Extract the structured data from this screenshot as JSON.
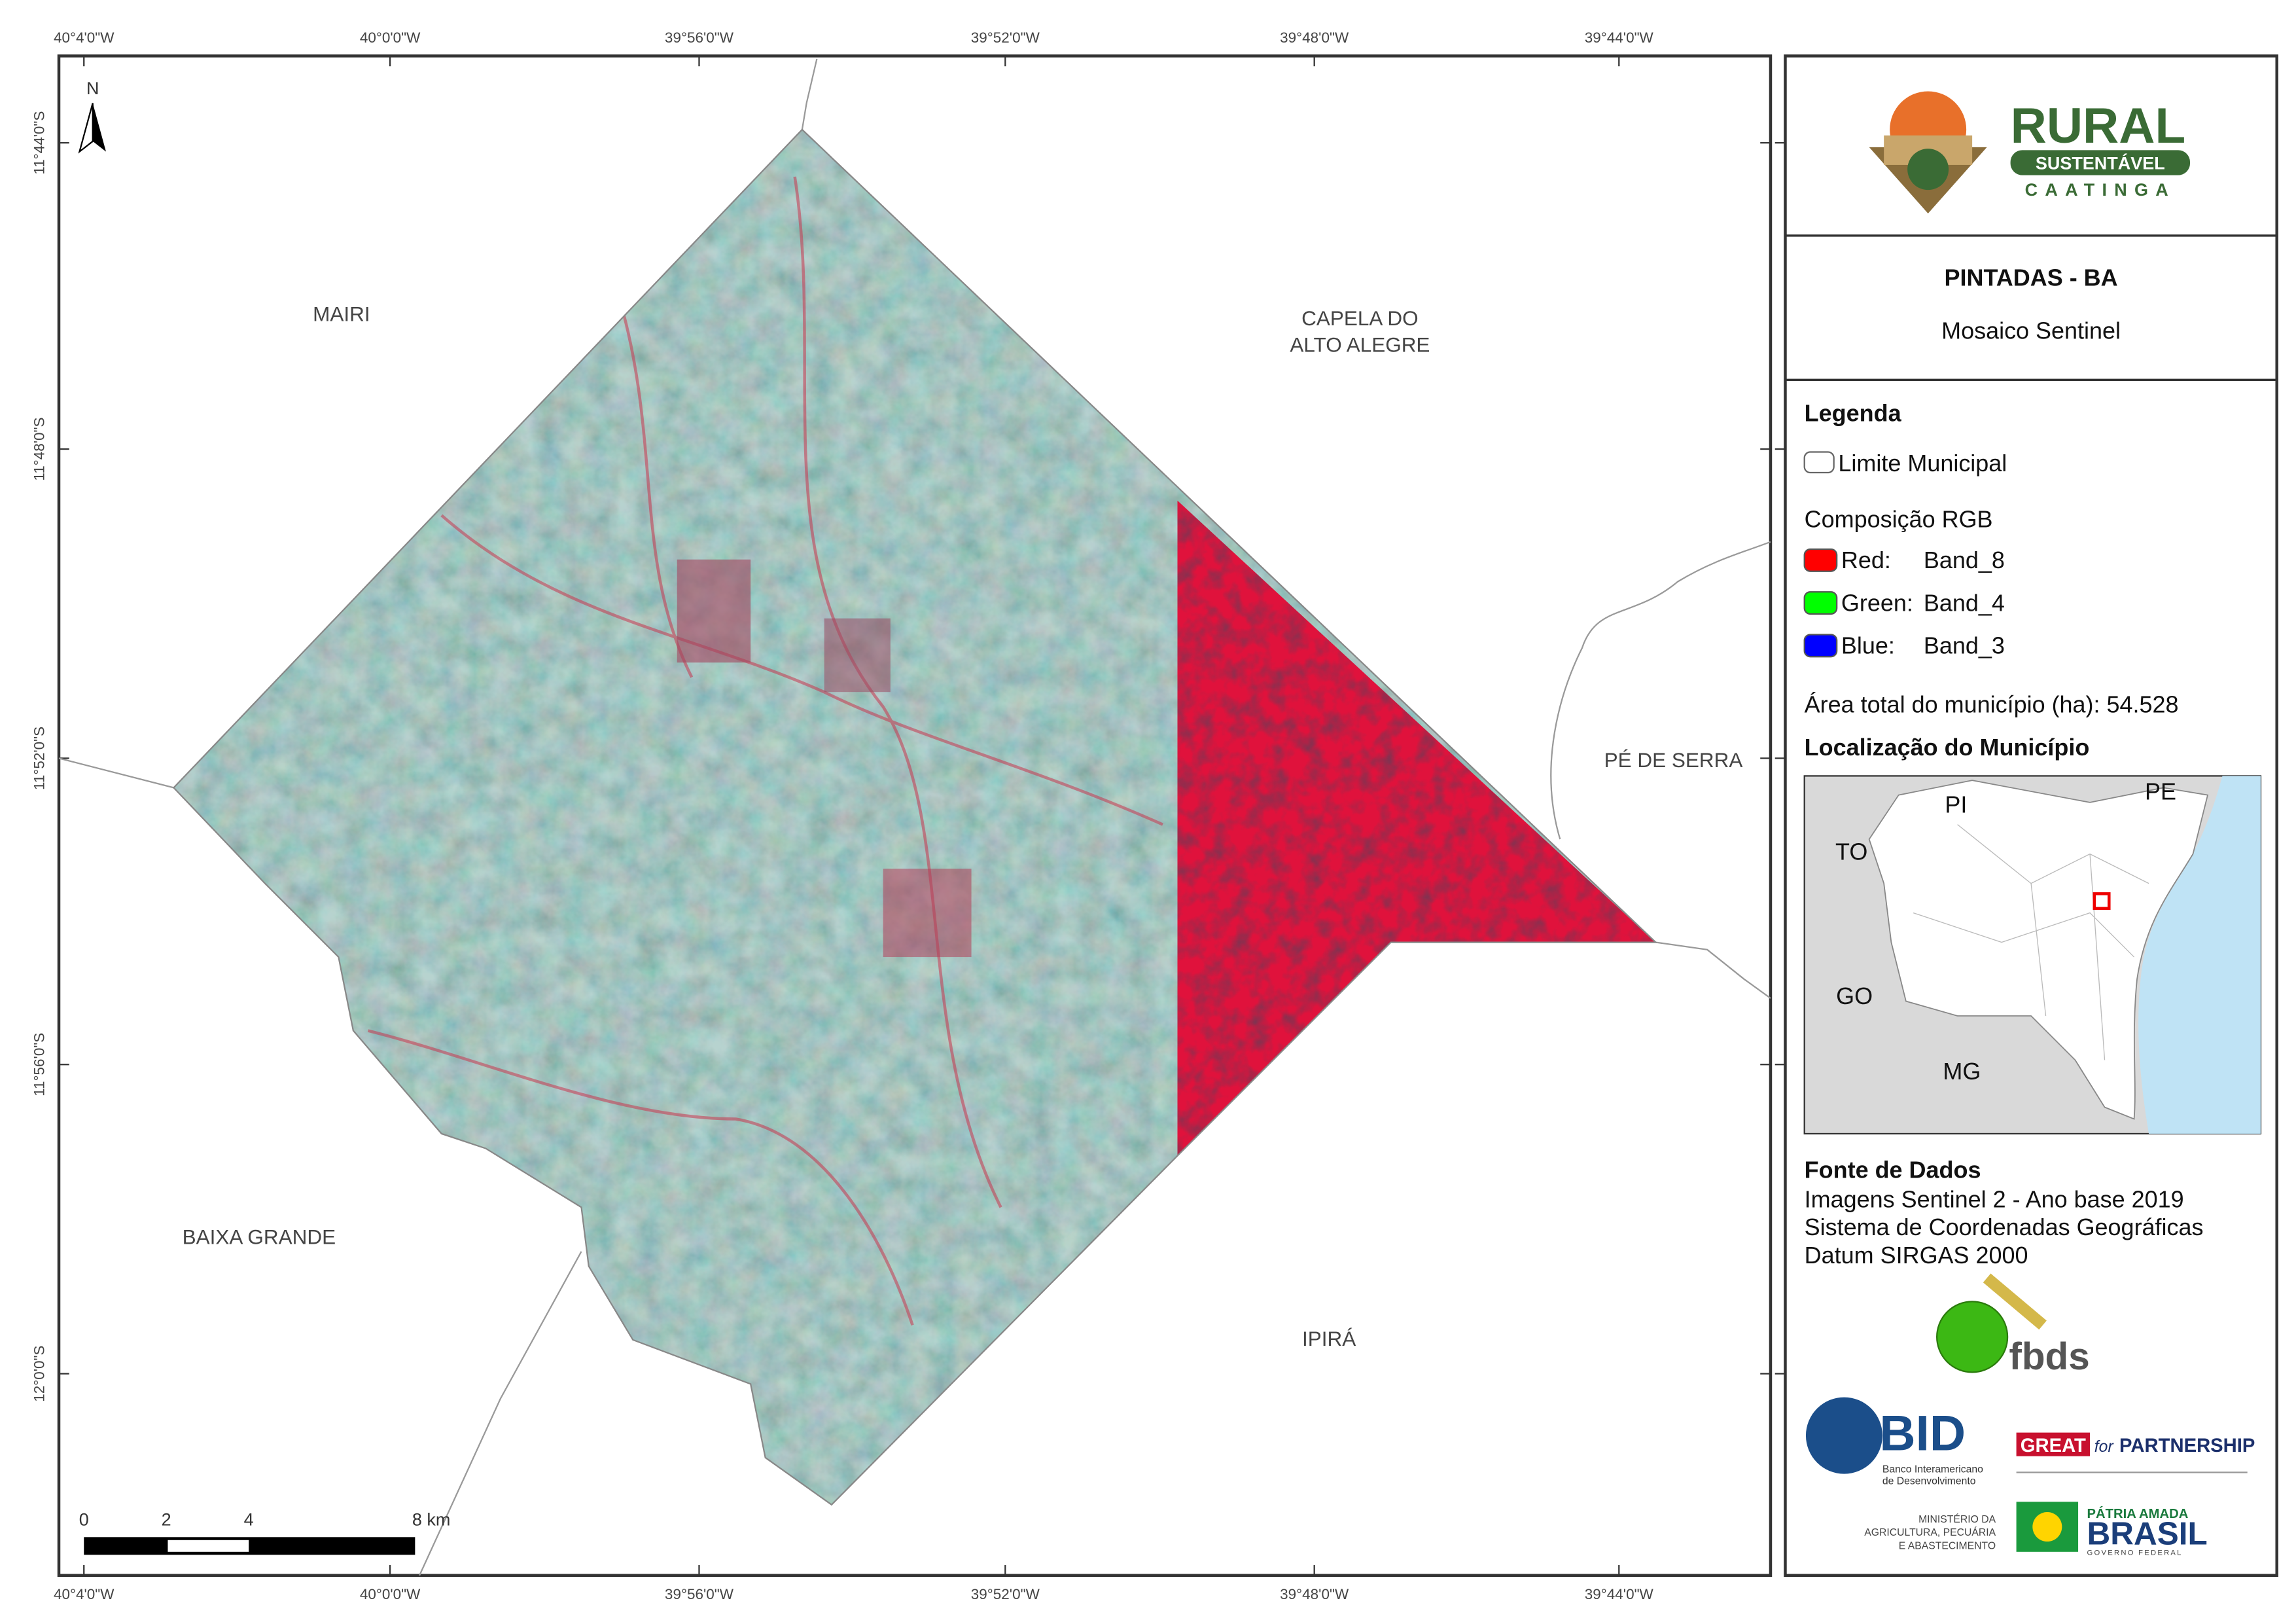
{
  "map": {
    "lon_labels": [
      "40°4'0\"W",
      "40°0'0\"W",
      "39°56'0\"W",
      "39°52'0\"W",
      "39°48'0\"W",
      "39°44'0\"W"
    ],
    "lat_labels": [
      "11°44'0\"S",
      "11°48'0\"S",
      "11°52'0\"S",
      "11°56'0\"S",
      "12°0'0\"S"
    ],
    "north": "N",
    "places": {
      "mairi": "MAIRI",
      "capela": [
        "CAPELA DO",
        "ALTO ALEGRE"
      ],
      "pe_de_serra": "PÉ DE SERRA",
      "baixa_grande": "BAIXA GRANDE",
      "ipira": "IPIRÁ"
    },
    "scale_bar": [
      "0",
      "2",
      "4",
      "8 km"
    ]
  },
  "panel": {
    "logo": {
      "title": "RURAL",
      "subtitle": "SUSTENTÁVEL",
      "tagline": "CAATINGA"
    },
    "title": "PINTADAS - BA",
    "subtitle": "Mosaico Sentinel",
    "legend": {
      "heading": "Legenda",
      "boundary": "Limite Municipal",
      "rgb_heading": "Composição RGB",
      "bands": [
        {
          "label": "Red:",
          "band": "Band_8",
          "color": "#ff0000"
        },
        {
          "label": "Green:",
          "band": "Band_4",
          "color": "#00ff00"
        },
        {
          "label": "Blue:",
          "band": "Band_3",
          "color": "#0000ff"
        }
      ],
      "area": "Área total do município (ha): 54.528"
    },
    "location": {
      "heading": "Localização do Município",
      "states": [
        "PI",
        "PE",
        "TO",
        "GO",
        "MG"
      ]
    },
    "sources": {
      "heading": "Fonte de Dados",
      "lines": [
        "Imagens Sentinel 2 - Ano base 2019",
        "Sistema de Coordenadas Geográficas",
        "Datum SIRGAS 2000"
      ]
    },
    "partners": {
      "fbds": "fbds",
      "bid": "BID",
      "bid_name": [
        "Banco Interamericano",
        "de Desenvolvimento"
      ],
      "great": "GREAT",
      "great_for": "for",
      "partnership": "PARTNERSHIP",
      "ministry": [
        "MINISTÉRIO DA",
        "AGRICULTURA, PECUÁRIA",
        "E ABASTECIMENTO"
      ],
      "brasil_top": "PÁTRIA AMADA",
      "brasil": "BRASIL",
      "brasil_gov": "GOVERNO FEDERAL"
    }
  }
}
